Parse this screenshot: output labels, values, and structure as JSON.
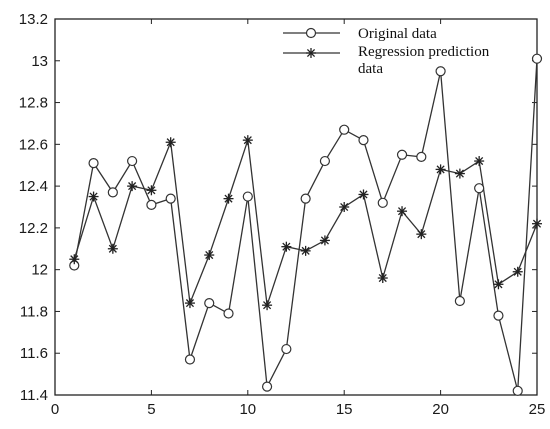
{
  "chart_data": {
    "type": "line",
    "x": [
      1,
      2,
      3,
      4,
      5,
      6,
      7,
      8,
      9,
      10,
      11,
      12,
      13,
      14,
      15,
      16,
      17,
      18,
      19,
      20,
      21,
      22,
      23,
      24,
      25
    ],
    "series": [
      {
        "name": "Original data",
        "marker": "circle",
        "values": [
          12.02,
          12.51,
          12.37,
          12.52,
          12.31,
          12.34,
          11.57,
          11.84,
          11.79,
          12.35,
          11.44,
          11.62,
          12.34,
          12.52,
          12.67,
          12.62,
          12.32,
          12.55,
          12.54,
          12.95,
          11.85,
          12.39,
          11.78,
          11.42,
          13.01
        ]
      },
      {
        "name": "Regression prediction data",
        "marker": "asterisk",
        "values": [
          12.05,
          12.35,
          12.1,
          12.4,
          12.38,
          12.61,
          11.84,
          12.07,
          12.34,
          12.62,
          11.83,
          12.11,
          12.09,
          12.14,
          12.3,
          12.36,
          11.96,
          12.28,
          12.17,
          12.48,
          12.46,
          12.52,
          11.93,
          11.99,
          12.22
        ]
      }
    ],
    "xlim": [
      0,
      25
    ],
    "ylim": [
      11.4,
      13.2
    ],
    "x_ticks": [
      "0",
      "5",
      "10",
      "15",
      "20",
      "25"
    ],
    "y_ticks": [
      "11.4",
      "11.6",
      "11.8",
      "12",
      "12.2",
      "12.4",
      "12.6",
      "12.8",
      "13",
      "13.2"
    ],
    "grid": false,
    "legend_position": "top-right",
    "line_color": "#333333"
  }
}
